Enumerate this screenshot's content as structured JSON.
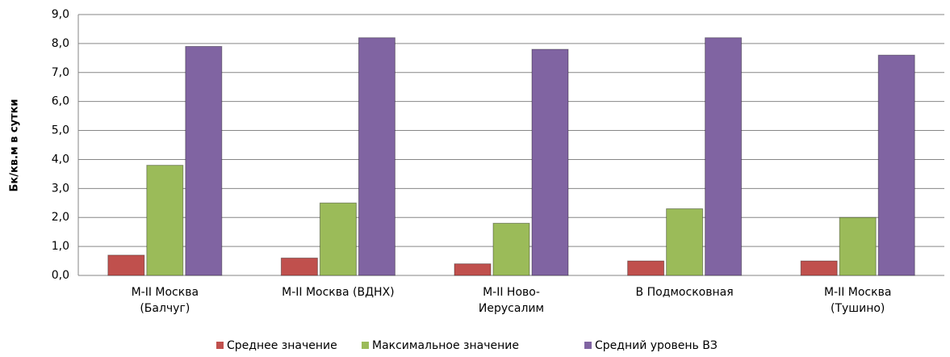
{
  "chart_data": {
    "type": "bar",
    "y_label": "Бк/кв.м в сутки",
    "categories": [
      "M-II Москва\n(Балчуг)",
      "M-II Москва (ВДНХ)",
      "M-II Ново-\nИерусалим",
      "В Подмосковная",
      "M-II Москва\n(Тушино)"
    ],
    "series": [
      {
        "name": "Среднее значение",
        "color": "#c0504d",
        "values": [
          0.7,
          0.6,
          0.4,
          0.5,
          0.5
        ]
      },
      {
        "name": "Максимальное значение",
        "color": "#9bbb59",
        "values": [
          3.8,
          2.5,
          1.8,
          2.3,
          2.0
        ]
      },
      {
        "name": "Средний уровень ВЗ",
        "color": "#8064a2",
        "values": [
          7.9,
          8.2,
          7.8,
          8.2,
          7.6
        ]
      }
    ],
    "ylim": [
      0,
      9
    ],
    "yticks": [
      {
        "value": 0,
        "label": "0,0"
      },
      {
        "value": 1,
        "label": "1,0"
      },
      {
        "value": 2,
        "label": "2,0"
      },
      {
        "value": 3,
        "label": "3,0"
      },
      {
        "value": 4,
        "label": "4,0"
      },
      {
        "value": 5,
        "label": "5,0"
      },
      {
        "value": 6,
        "label": "6,0"
      },
      {
        "value": 7,
        "label": "7,0"
      },
      {
        "value": 8,
        "label": "8,0"
      },
      {
        "value": 9,
        "label": "9,0"
      }
    ],
    "grid": true,
    "legend": "bottom"
  }
}
